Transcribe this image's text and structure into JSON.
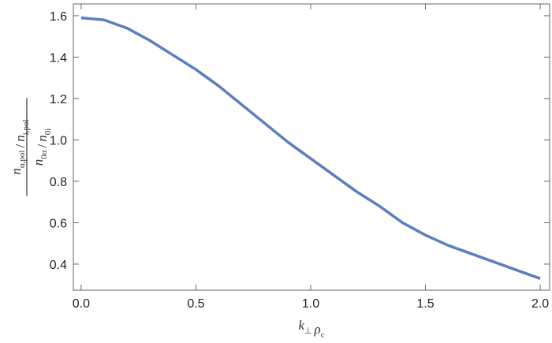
{
  "chart_data": {
    "type": "line",
    "xlabel": [
      {
        "base": "k",
        "sub": "⊥"
      },
      {
        "base": "ρ",
        "sub": "c"
      }
    ],
    "ylabel": {
      "numerator": [
        {
          "base": "n",
          "sub": "α,pol"
        },
        {
          "base": "/"
        },
        {
          "base": "n",
          "sub": "i,pol"
        }
      ],
      "denominator": [
        {
          "base": "n",
          "sub": "0α"
        },
        {
          "base": "/"
        },
        {
          "base": "n",
          "sub": "0i"
        }
      ]
    },
    "x": [
      0,
      0.1,
      0.2,
      0.3,
      0.4,
      0.5,
      0.6,
      0.7,
      0.8,
      0.9,
      1.0,
      1.1,
      1.2,
      1.3,
      1.4,
      1.5,
      1.6,
      1.7,
      1.8,
      1.9,
      2.0
    ],
    "series": [
      {
        "color": "#5a7ebf",
        "values": [
          1.59,
          1.58,
          1.54,
          1.48,
          1.41,
          1.34,
          1.26,
          1.17,
          1.08,
          0.99,
          0.91,
          0.83,
          0.75,
          0.68,
          0.6,
          0.54,
          0.49,
          0.45,
          0.41,
          0.37,
          0.33
        ]
      }
    ],
    "xlim": [
      -0.034,
      2.041
    ],
    "ylim": [
      0.274,
      1.657
    ],
    "xticks": [
      {
        "value": 0,
        "label": "0.0"
      },
      0.5,
      {
        "value": 1,
        "label": "1.0"
      },
      1.5,
      {
        "value": 2,
        "label": "2.0"
      }
    ],
    "yticks": [
      0.4,
      0.6,
      0.8,
      {
        "value": 1,
        "label": "1.0"
      },
      1.2,
      1.4,
      1.6
    ]
  }
}
